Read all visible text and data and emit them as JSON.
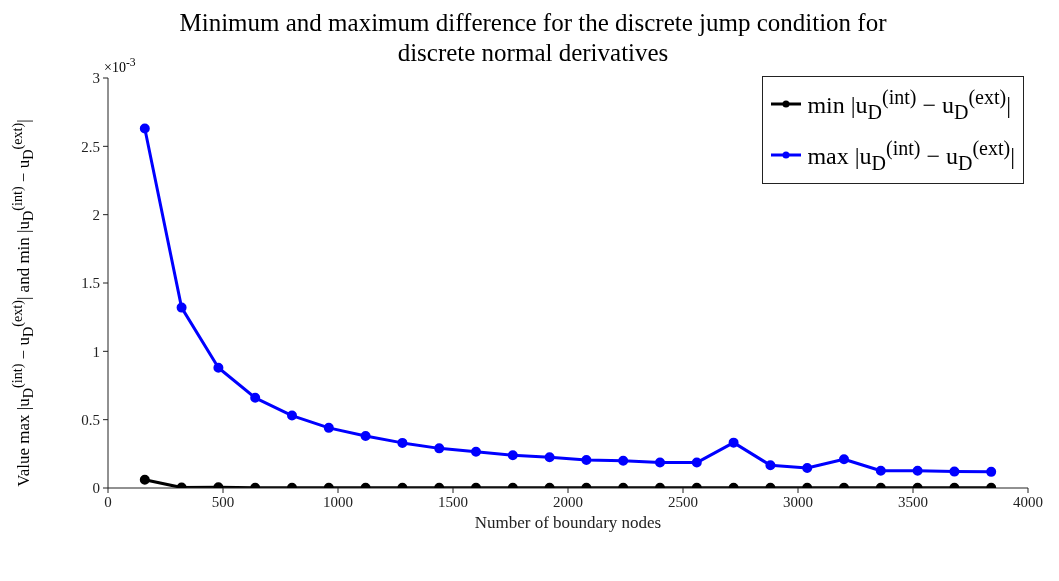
{
  "chart_data": {
    "type": "line",
    "title": "Minimum and maximum difference for the discrete jump condition for discrete normal derivatives",
    "xlabel": "Number of boundary nodes",
    "ylabel": "Value max |u$_{D}$$^{(int)}$ − u$_{D}$$^{(ext)}$| and min |u$_{D}$$^{(int)}$ − u$_{D}$$^{(ext)}$|",
    "annotations": [
      "×10$^{-3}$"
    ],
    "x": [
      160,
      320,
      480,
      640,
      800,
      960,
      1120,
      1280,
      1440,
      1600,
      1760,
      1920,
      2080,
      2240,
      2400,
      2560,
      2720,
      2880,
      3040,
      3200,
      3360,
      3520,
      3680,
      3840
    ],
    "series": [
      {
        "name": "min |u$_{D}$$^{(int)}$ − u$_{D}$$^{(ext)}$|",
        "color": "#000000",
        "values": [
          0.06,
          0.003,
          0.005,
          0.002,
          0.002,
          0.002,
          0.002,
          0.001,
          0.001,
          0.001,
          0.001,
          0.001,
          0.001,
          0.001,
          0.001,
          0.001,
          0.001,
          0.001,
          0.001,
          0.001,
          0.001,
          0.001,
          0.001,
          0.001
        ]
      },
      {
        "name": "max |u$_{D}$$^{(int)}$ − u$_{D}$$^{(ext)}$|",
        "color": "#0000ff",
        "values": [
          2.63,
          1.32,
          0.88,
          0.66,
          0.53,
          0.44,
          0.38,
          0.33,
          0.29,
          0.265,
          0.24,
          0.225,
          0.205,
          0.2,
          0.186,
          0.186,
          0.332,
          0.166,
          0.146,
          0.21,
          0.126,
          0.126,
          0.12,
          0.118
        ]
      }
    ],
    "xlim": [
      0,
      4000
    ],
    "xticks": [
      0,
      500,
      1000,
      1500,
      2000,
      2500,
      3000,
      3500,
      4000
    ],
    "ylim": [
      0,
      3
    ],
    "yticks": [
      0,
      0.5,
      1,
      1.5,
      2,
      2.5,
      3
    ],
    "grid": false,
    "legend": "top right",
    "marker": "circle",
    "line_style": "solid"
  }
}
